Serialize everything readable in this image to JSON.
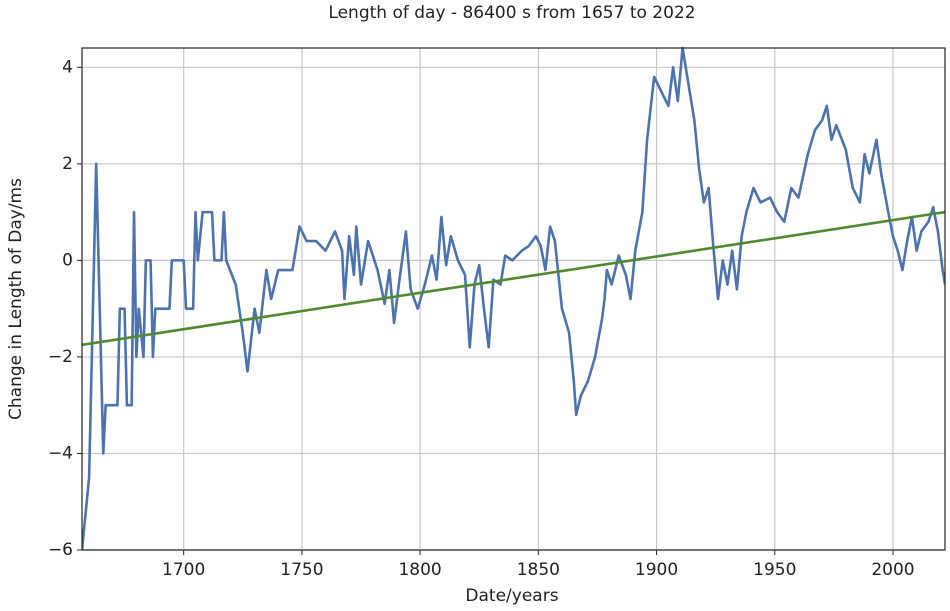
{
  "chart_data": {
    "type": "line",
    "title": "Length of day - 86400 s from 1657 to 2022",
    "xlabel": "Date/years",
    "ylabel": "Change in Length of Day/ms",
    "xlim": [
      1657,
      2022
    ],
    "ylim": [
      -6,
      4.4
    ],
    "xticks": [
      1700,
      1750,
      1800,
      1850,
      1900,
      1950,
      2000
    ],
    "yticks": [
      {
        "value": -6,
        "label": "−6"
      },
      {
        "value": -4,
        "label": "−4"
      },
      {
        "value": -2,
        "label": "−2"
      },
      0,
      2,
      4
    ],
    "grid": true,
    "series": [
      {
        "color": "#4c72b0",
        "x": [
          1657,
          1660,
          1663,
          1664,
          1666,
          1667,
          1672,
          1673,
          1675,
          1676,
          1678,
          1679,
          1680,
          1681,
          1683,
          1684,
          1686,
          1687,
          1688,
          1694,
          1695,
          1700,
          1701,
          1704,
          1705,
          1706,
          1708,
          1712,
          1713,
          1716,
          1717,
          1718,
          1722,
          1725,
          1727,
          1730,
          1732,
          1735,
          1737,
          1740,
          1746,
          1749,
          1752,
          1756,
          1760,
          1764,
          1767,
          1768,
          1770,
          1772,
          1773,
          1775,
          1778,
          1782,
          1785,
          1787,
          1789,
          1791,
          1794,
          1796,
          1799,
          1802,
          1805,
          1807,
          1809,
          1811,
          1813,
          1816,
          1819,
          1821,
          1823,
          1825,
          1827,
          1829,
          1831,
          1834,
          1836,
          1839,
          1843,
          1846,
          1849,
          1851,
          1853,
          1855,
          1857,
          1860,
          1863,
          1865,
          1866,
          1868,
          1871,
          1874,
          1877,
          1878,
          1879,
          1881,
          1884,
          1887,
          1889,
          1891,
          1894,
          1896,
          1899,
          1902,
          1905,
          1907,
          1909,
          1911,
          1913,
          1916,
          1918,
          1920,
          1922,
          1924,
          1926,
          1928,
          1930,
          1932,
          1934,
          1936,
          1938,
          1941,
          1944,
          1948,
          1951,
          1954,
          1957,
          1960,
          1964,
          1967,
          1970,
          1972,
          1974,
          1976,
          1980,
          1983,
          1986,
          1988,
          1990,
          1993,
          1995,
          1998,
          2000,
          2002,
          2004,
          2006,
          2008,
          2010,
          2012,
          2015,
          2017,
          2019,
          2021,
          2022
        ],
        "values": [
          -6,
          -4.5,
          2,
          0,
          -4,
          -3,
          -3,
          -1,
          -1,
          -3,
          -3,
          1,
          -2,
          -1,
          -2,
          0,
          0,
          -2,
          -1,
          -1,
          0,
          0,
          -1,
          -1,
          1,
          0,
          1,
          1,
          0,
          0,
          1,
          0,
          -0.5,
          -1.5,
          -2.3,
          -1,
          -1.5,
          -0.2,
          -0.8,
          -0.2,
          -0.2,
          0.7,
          0.4,
          0.4,
          0.2,
          0.6,
          0.2,
          -0.8,
          0.5,
          -0.3,
          0.7,
          -0.5,
          0.4,
          -0.2,
          -0.9,
          -0.2,
          -1.3,
          -0.5,
          0.6,
          -0.6,
          -1,
          -0.5,
          0.1,
          -0.4,
          0.9,
          -0.1,
          0.5,
          0,
          -0.3,
          -1.8,
          -0.5,
          -0.1,
          -1,
          -1.8,
          -0.4,
          -0.5,
          0.1,
          0,
          0.2,
          0.3,
          0.5,
          0.3,
          -0.2,
          0.7,
          0.4,
          -1,
          -1.5,
          -2.5,
          -3.2,
          -2.8,
          -2.5,
          -2,
          -1.2,
          -0.8,
          -0.2,
          -0.5,
          0.1,
          -0.3,
          -0.8,
          0.2,
          1,
          2.5,
          3.8,
          3.5,
          3.2,
          4,
          3.3,
          4.4,
          3.8,
          2.9,
          1.9,
          1.2,
          1.5,
          0.3,
          -0.8,
          0,
          -0.5,
          0.2,
          -0.6,
          0.5,
          1,
          1.5,
          1.2,
          1.3,
          1,
          0.8,
          1.5,
          1.3,
          2.2,
          2.7,
          2.9,
          3.2,
          2.5,
          2.8,
          2.3,
          1.5,
          1.2,
          2.2,
          1.8,
          2.5,
          1.8,
          1,
          0.5,
          0.2,
          -0.2,
          0.4,
          0.9,
          0.2,
          0.6,
          0.8,
          1.1,
          0.6,
          -0.2,
          -0.5
        ]
      },
      {
        "color": "#4f8a2f",
        "x": [
          1657,
          2022
        ],
        "values": [
          -1.75,
          1.0
        ]
      }
    ]
  }
}
